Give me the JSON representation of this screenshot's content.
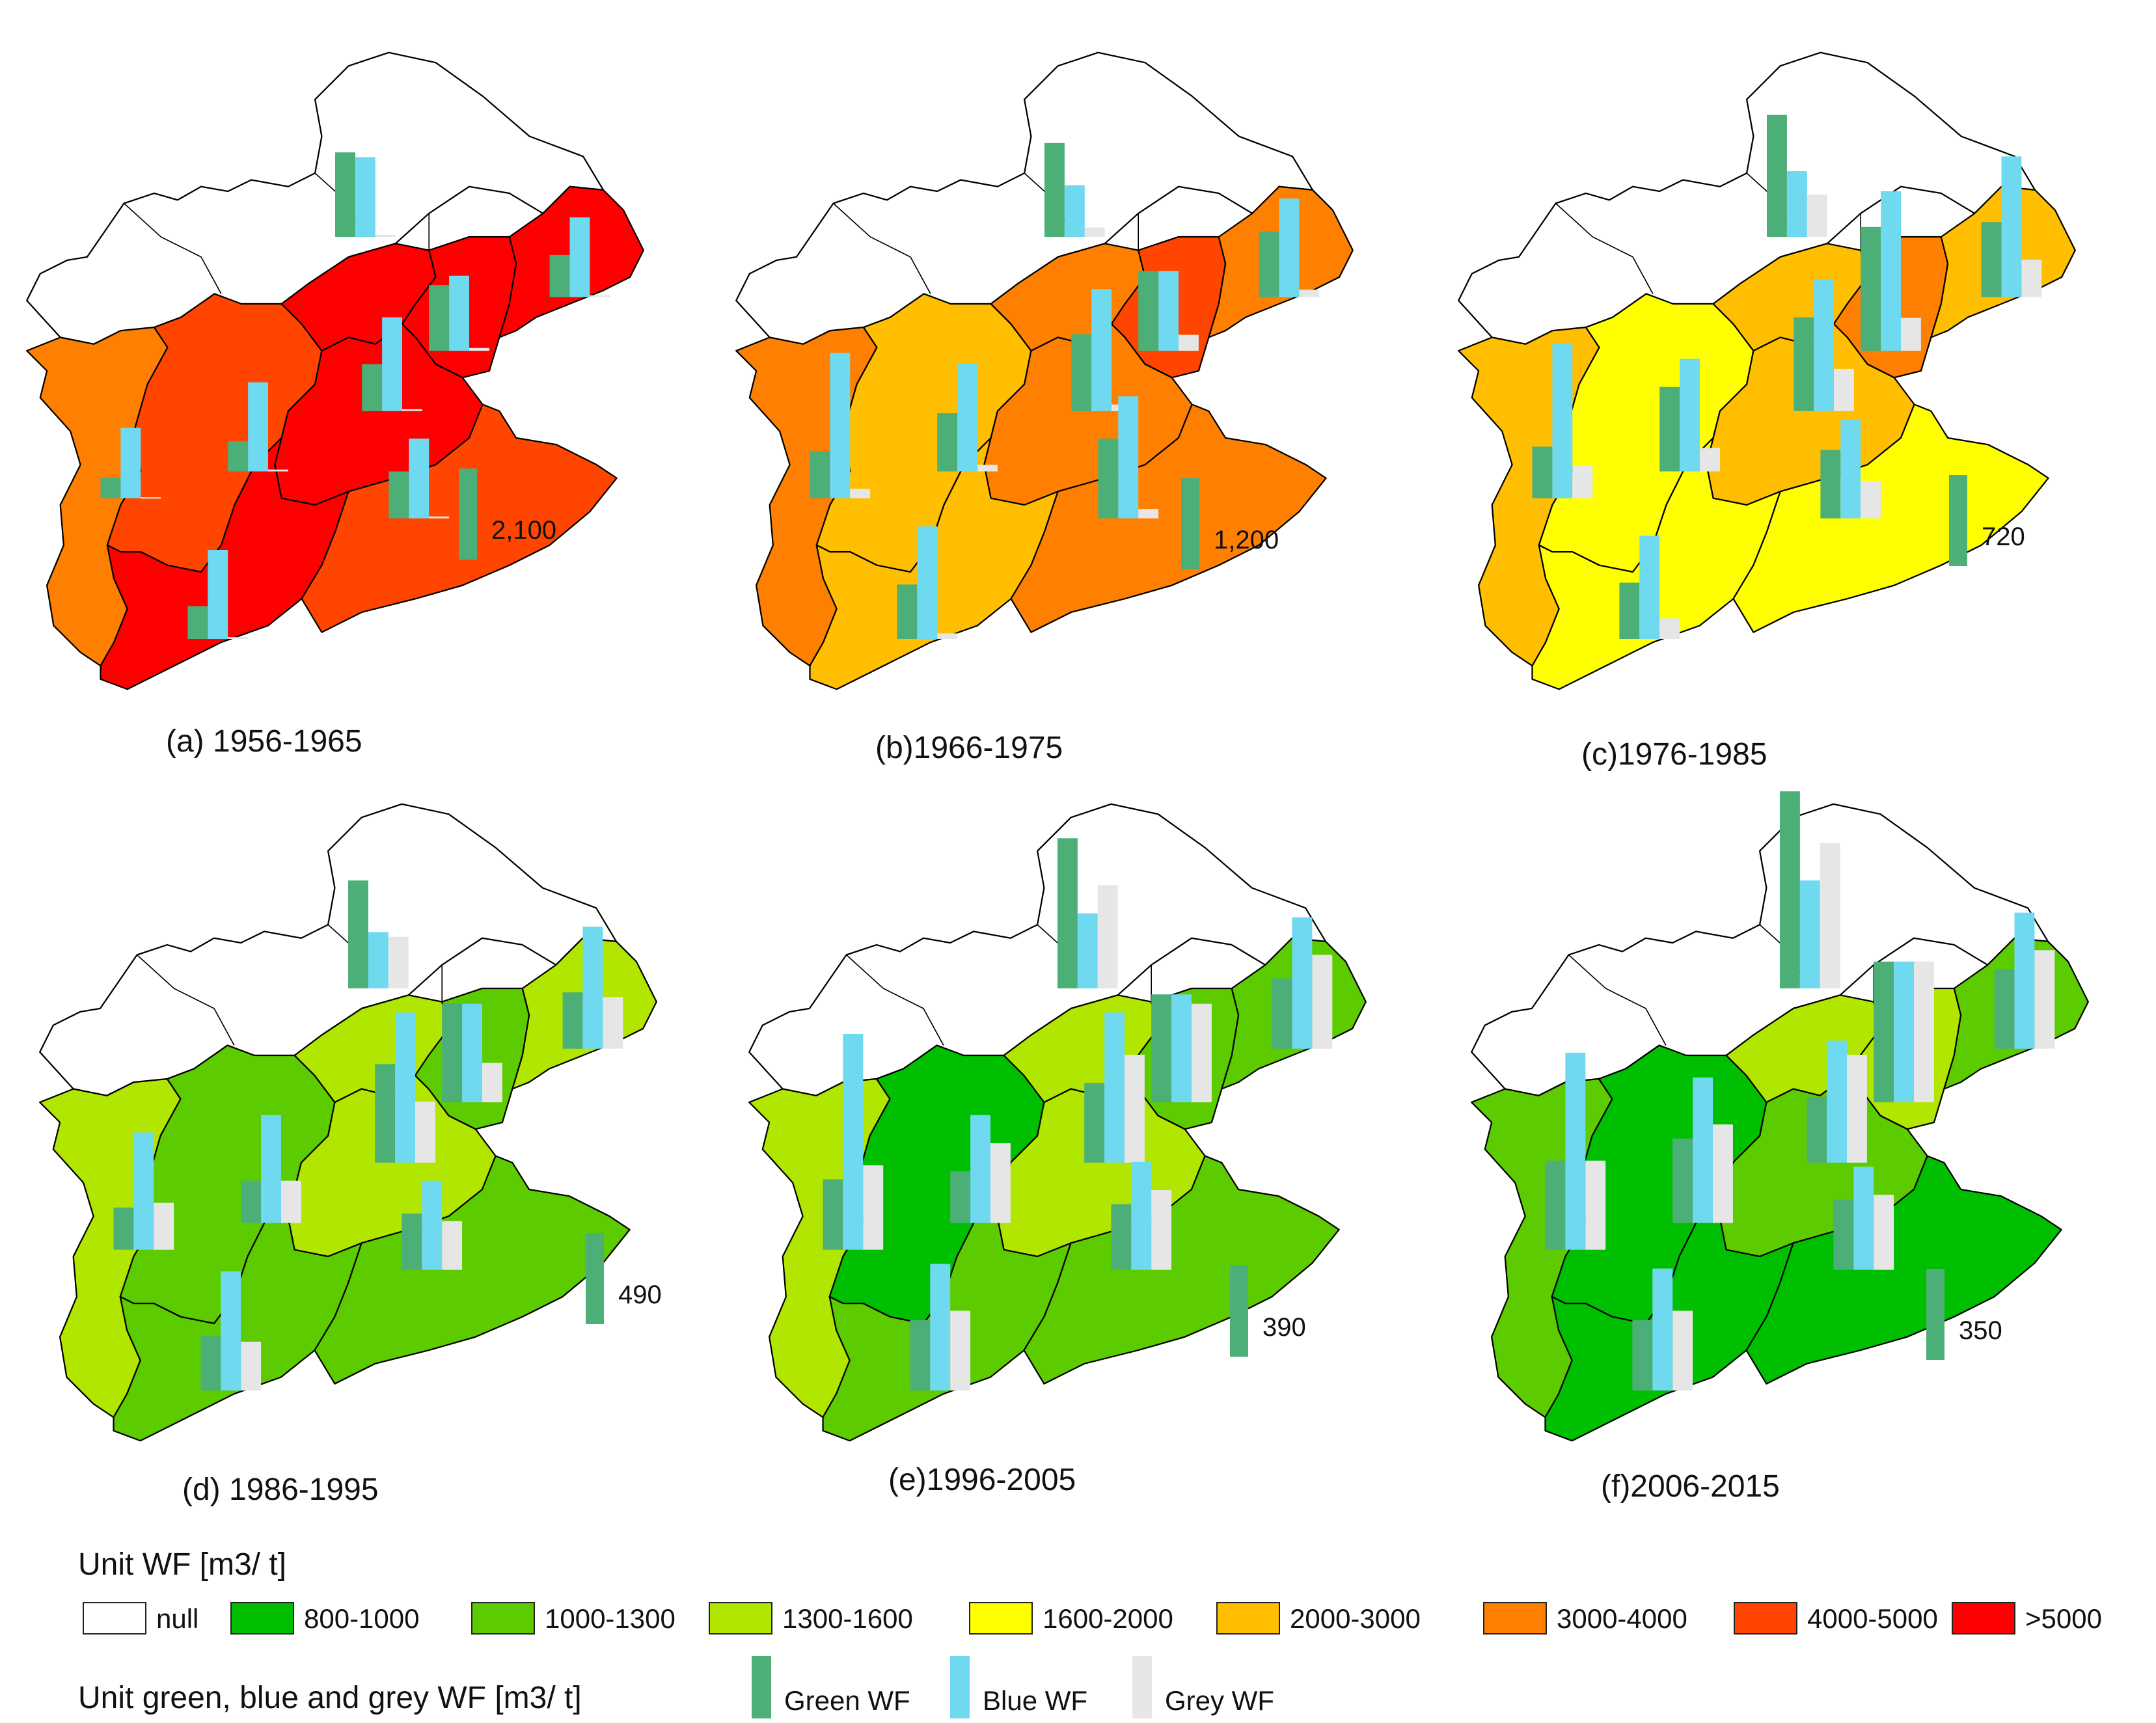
{
  "colors": {
    "null": "#ffffff",
    "800-1000": "#00bf00",
    "1000-1300": "#5ccc00",
    "1300-1600": "#b0e600",
    "1600-2000": "#ffff00",
    "2000-3000": "#ffbf00",
    "3000-4000": "#ff7f00",
    "4000-5000": "#ff4500",
    ">5000": "#ff0000",
    "green_wf": "#4caf78",
    "blue_wf": "#6fd9f0",
    "grey_wf": "#e6e6e6"
  },
  "panels": [
    {
      "caption": "(a) 1956-1965",
      "scale_value": "2,100",
      "regions": {
        "west": "3000-4000",
        "center": "4000-5000",
        "beijing": ">5000",
        "tianjin": ">5000",
        "hebei_ne": ">5000",
        "hebei_e": ">5000",
        "south": ">5000",
        "southeast": "4000-5000"
      },
      "bars": [
        {
          "site": "beijing",
          "green": 0.9,
          "blue": 0.85,
          "grey": 0.02
        },
        {
          "site": "tianjin",
          "green": 0.7,
          "blue": 0.8,
          "grey": 0.03
        },
        {
          "site": "hebei_ne",
          "green": 0.45,
          "blue": 0.85,
          "grey": 0.02
        },
        {
          "site": "center",
          "green": 0.32,
          "blue": 0.95,
          "grey": 0.02
        },
        {
          "site": "hebei_mid",
          "green": 0.5,
          "blue": 1.0,
          "grey": 0.02
        },
        {
          "site": "hebei_e",
          "green": 0.5,
          "blue": 0.85,
          "grey": 0.02
        },
        {
          "site": "west",
          "green": 0.22,
          "blue": 0.75,
          "grey": 0.01
        },
        {
          "site": "south",
          "green": 0.35,
          "blue": 0.95,
          "grey": 0.02
        }
      ]
    },
    {
      "caption": "(b)1966-1975",
      "scale_value": "1,200",
      "regions": {
        "west": "3000-4000",
        "center": "2000-3000",
        "beijing": "3000-4000",
        "tianjin": "4000-5000",
        "hebei_ne": "3000-4000",
        "hebei_e": "3000-4000",
        "south": "2000-3000",
        "southeast": "3000-4000"
      },
      "bars": [
        {
          "site": "beijing",
          "green": 1.0,
          "blue": 0.55,
          "grey": 0.1
        },
        {
          "site": "tianjin",
          "green": 0.85,
          "blue": 0.85,
          "grey": 0.17
        },
        {
          "site": "hebei_ne",
          "green": 0.7,
          "blue": 1.05,
          "grey": 0.08
        },
        {
          "site": "center",
          "green": 0.62,
          "blue": 1.15,
          "grey": 0.07
        },
        {
          "site": "hebei_mid",
          "green": 0.82,
          "blue": 1.3,
          "grey": 0.07
        },
        {
          "site": "hebei_e",
          "green": 0.85,
          "blue": 1.3,
          "grey": 0.1
        },
        {
          "site": "west",
          "green": 0.5,
          "blue": 1.55,
          "grey": 0.1
        },
        {
          "site": "south",
          "green": 0.58,
          "blue": 1.2,
          "grey": 0.06
        }
      ]
    },
    {
      "caption": "(c)1976-1985",
      "scale_value": "720",
      "regions": {
        "west": "2000-3000",
        "center": "1600-2000",
        "beijing": "2000-3000",
        "tianjin": "3000-4000",
        "hebei_ne": "2000-3000",
        "hebei_e": "2000-3000",
        "south": "1600-2000",
        "southeast": "1600-2000"
      },
      "bars": [
        {
          "site": "beijing",
          "green": 1.3,
          "blue": 0.7,
          "grey": 0.45
        },
        {
          "site": "tianjin",
          "green": 1.32,
          "blue": 1.7,
          "grey": 0.35
        },
        {
          "site": "hebei_ne",
          "green": 0.8,
          "blue": 1.5,
          "grey": 0.4
        },
        {
          "site": "center",
          "green": 0.9,
          "blue": 1.2,
          "grey": 0.25
        },
        {
          "site": "hebei_mid",
          "green": 1.0,
          "blue": 1.4,
          "grey": 0.45
        },
        {
          "site": "hebei_e",
          "green": 0.73,
          "blue": 1.05,
          "grey": 0.4
        },
        {
          "site": "west",
          "green": 0.55,
          "blue": 1.65,
          "grey": 0.35
        },
        {
          "site": "south",
          "green": 0.6,
          "blue": 1.1,
          "grey": 0.22
        }
      ]
    },
    {
      "caption": "(d) 1986-1995",
      "scale_value": "490",
      "regions": {
        "west": "1300-1600",
        "center": "1000-1300",
        "beijing": "1300-1600",
        "tianjin": "1000-1300",
        "hebei_ne": "1300-1600",
        "hebei_e": "1300-1600",
        "south": "1000-1300",
        "southeast": "1000-1300"
      },
      "bars": [
        {
          "site": "beijing",
          "green": 1.15,
          "blue": 0.6,
          "grey": 0.55
        },
        {
          "site": "tianjin",
          "green": 1.05,
          "blue": 1.05,
          "grey": 0.42
        },
        {
          "site": "hebei_ne",
          "green": 0.6,
          "blue": 1.3,
          "grey": 0.55
        },
        {
          "site": "center",
          "green": 0.45,
          "blue": 1.15,
          "grey": 0.45
        },
        {
          "site": "hebei_mid",
          "green": 1.05,
          "blue": 1.6,
          "grey": 0.65
        },
        {
          "site": "hebei_e",
          "green": 0.6,
          "blue": 0.95,
          "grey": 0.52
        },
        {
          "site": "west",
          "green": 0.45,
          "blue": 1.25,
          "grey": 0.5
        },
        {
          "site": "south",
          "green": 0.58,
          "blue": 1.27,
          "grey": 0.52
        }
      ]
    },
    {
      "caption": "(e)1996-2005",
      "scale_value": "390",
      "regions": {
        "west": "1300-1600",
        "center": "800-1000",
        "beijing": "1300-1600",
        "tianjin": "1000-1300",
        "hebei_ne": "1000-1300",
        "hebei_e": "1300-1600",
        "south": "1000-1300",
        "southeast": "1000-1300"
      },
      "bars": [
        {
          "site": "beijing",
          "green": 1.6,
          "blue": 0.8,
          "grey": 1.1
        },
        {
          "site": "tianjin",
          "green": 1.15,
          "blue": 1.15,
          "grey": 1.05
        },
        {
          "site": "hebei_ne",
          "green": 0.75,
          "blue": 1.4,
          "grey": 1.0
        },
        {
          "site": "center",
          "green": 0.55,
          "blue": 1.15,
          "grey": 0.85
        },
        {
          "site": "hebei_mid",
          "green": 0.85,
          "blue": 1.6,
          "grey": 1.15
        },
        {
          "site": "hebei_e",
          "green": 0.7,
          "blue": 1.15,
          "grey": 0.85
        },
        {
          "site": "west",
          "green": 0.75,
          "blue": 2.3,
          "grey": 0.9
        },
        {
          "site": "south",
          "green": 0.75,
          "blue": 1.35,
          "grey": 0.85
        }
      ]
    },
    {
      "caption": "(f)2006-2015",
      "scale_value": "350",
      "regions": {
        "west": "1000-1300",
        "center": "800-1000",
        "beijing": "1300-1600",
        "tianjin": "1300-1600",
        "hebei_ne": "1000-1300",
        "hebei_e": "1000-1300",
        "south": "800-1000",
        "southeast": "800-1000"
      },
      "bars": [
        {
          "site": "beijing",
          "green": 2.1,
          "blue": 1.15,
          "grey": 1.55
        },
        {
          "site": "tianjin",
          "green": 1.5,
          "blue": 1.5,
          "grey": 1.5
        },
        {
          "site": "hebei_ne",
          "green": 0.85,
          "blue": 1.45,
          "grey": 1.05
        },
        {
          "site": "center",
          "green": 0.9,
          "blue": 1.55,
          "grey": 1.05
        },
        {
          "site": "hebei_mid",
          "green": 0.7,
          "blue": 1.3,
          "grey": 1.15
        },
        {
          "site": "hebei_e",
          "green": 0.75,
          "blue": 1.1,
          "grey": 0.8
        },
        {
          "site": "west",
          "green": 0.95,
          "blue": 2.1,
          "grey": 0.95
        },
        {
          "site": "south",
          "green": 0.75,
          "blue": 1.3,
          "grey": 0.85
        }
      ]
    }
  ],
  "legend": {
    "unit_wf_title": "Unit WF [m3/ t]",
    "classes": [
      "null",
      "800-1000",
      "1000-1300",
      "1300-1600",
      "1600-2000",
      "2000-3000",
      "3000-4000",
      "4000-5000",
      ">5000"
    ],
    "component_title": "Unit green, blue and grey WF [m3/ t]",
    "components": [
      {
        "key": "green_wf",
        "label": "Green WF"
      },
      {
        "key": "blue_wf",
        "label": "Blue WF"
      },
      {
        "key": "grey_wf",
        "label": "Grey WF"
      }
    ]
  }
}
